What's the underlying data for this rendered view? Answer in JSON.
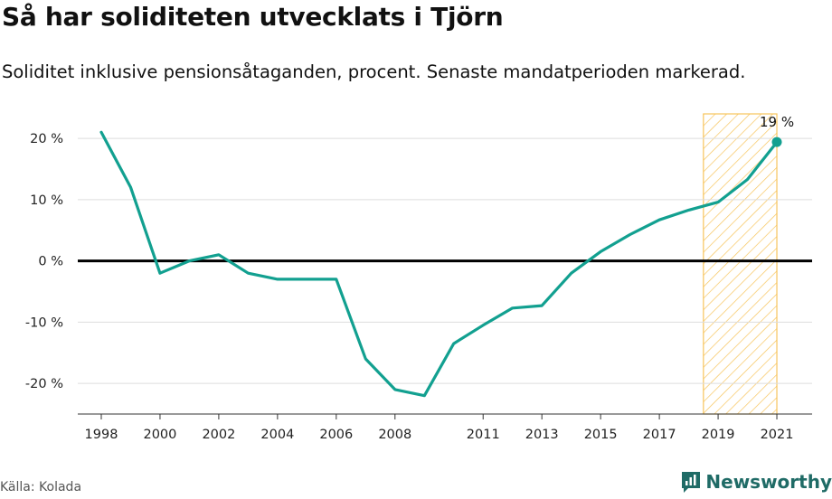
{
  "title": "Så har soliditeten utvecklats i Tjörn",
  "subtitle": "Soliditet inklusive pensionsåtaganden, procent. Senaste mandatperioden markerad.",
  "source": "Källa: Kolada",
  "brand": "Newsworthy",
  "colors": {
    "line": "#12a090",
    "highlight_fill": "#fde9b4",
    "highlight_stroke": "#f7c45c",
    "grid": "#dddddd",
    "zero_line": "#000000"
  },
  "chart_data": {
    "type": "line",
    "title": "Så har soliditeten utvecklats i Tjörn",
    "subtitle": "Soliditet inklusive pensionsåtaganden, procent. Senaste mandatperioden markerad.",
    "xlabel": "",
    "ylabel": "",
    "xlim": [
      1997.2,
      2022.2
    ],
    "ylim": [
      -25,
      24
    ],
    "grid": true,
    "series": [
      {
        "name": "Soliditet",
        "x": [
          1998,
          1999,
          2000,
          2001,
          2002,
          2003,
          2004,
          2005,
          2006,
          2007,
          2008,
          2009,
          2010,
          2011,
          2012,
          2013,
          2014,
          2015,
          2016,
          2017,
          2018,
          2019,
          2020,
          2021
        ],
        "y": [
          21,
          12,
          -2,
          0,
          1,
          -2,
          -3,
          -3,
          -3,
          -16,
          -21,
          -22,
          -13.5,
          -10.5,
          -7.7,
          -7.3,
          -2,
          1.5,
          4.3,
          6.7,
          8.3,
          9.6,
          13.3,
          19.4
        ]
      }
    ],
    "highlight": {
      "x_start": 2018.5,
      "x_end": 2021.0,
      "label": "Senaste mandatperioden"
    },
    "annotations": [
      {
        "x": 2021,
        "y": 19.4,
        "text": "19 %"
      }
    ],
    "x_ticks": [
      1998,
      2000,
      2002,
      2004,
      2006,
      2008,
      2011,
      2013,
      2015,
      2017,
      2019,
      2021
    ],
    "x_tick_labels": [
      "1998",
      "2000",
      "2002",
      "2004",
      "2006",
      "2008",
      "2011",
      "2013",
      "2015",
      "2017",
      "2019",
      "2021"
    ],
    "y_ticks": [
      20,
      10,
      0,
      -10,
      -20
    ],
    "y_tick_labels": [
      "20 %",
      "10 %",
      "0 %",
      "-10 %",
      "-20 %"
    ]
  }
}
